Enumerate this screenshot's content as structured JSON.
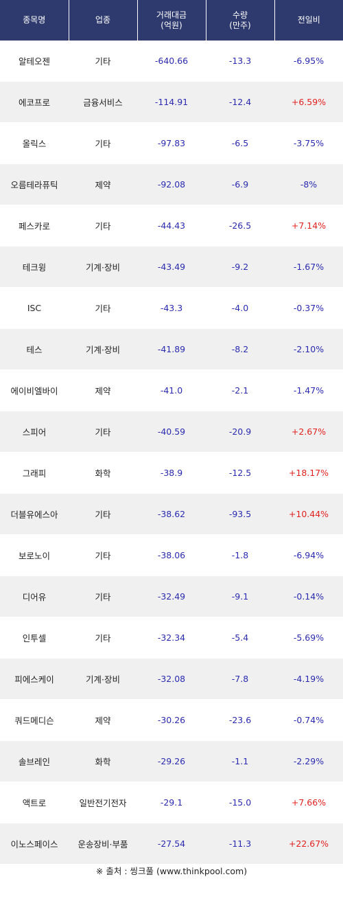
{
  "headers": [
    "종목명",
    "업종",
    "거래대금\n(억원)",
    "수량\n(만주)",
    "전일비"
  ],
  "rows": [
    {
      "name": "알테오젠",
      "sector": "기타",
      "amount": "-640.66",
      "qty": "-13.3",
      "change": "-6.95%",
      "dir": "down"
    },
    {
      "name": "에코프로",
      "sector": "금융서비스",
      "amount": "-114.91",
      "qty": "-12.4",
      "change": "+6.59%",
      "dir": "up"
    },
    {
      "name": "올릭스",
      "sector": "기타",
      "amount": "-97.83",
      "qty": "-6.5",
      "change": "-3.75%",
      "dir": "down"
    },
    {
      "name": "오름테라퓨틱",
      "sector": "제약",
      "amount": "-92.08",
      "qty": "-6.9",
      "change": "-8%",
      "dir": "down"
    },
    {
      "name": "페스카로",
      "sector": "기타",
      "amount": "-44.43",
      "qty": "-26.5",
      "change": "+7.14%",
      "dir": "up"
    },
    {
      "name": "테크윙",
      "sector": "기계·장비",
      "amount": "-43.49",
      "qty": "-9.2",
      "change": "-1.67%",
      "dir": "down"
    },
    {
      "name": "ISC",
      "sector": "기타",
      "amount": "-43.3",
      "qty": "-4.0",
      "change": "-0.37%",
      "dir": "down"
    },
    {
      "name": "테스",
      "sector": "기계·장비",
      "amount": "-41.89",
      "qty": "-8.2",
      "change": "-2.10%",
      "dir": "down"
    },
    {
      "name": "에이비엘바이",
      "sector": "제약",
      "amount": "-41.0",
      "qty": "-2.1",
      "change": "-1.47%",
      "dir": "down"
    },
    {
      "name": "스피어",
      "sector": "기타",
      "amount": "-40.59",
      "qty": "-20.9",
      "change": "+2.67%",
      "dir": "up"
    },
    {
      "name": "그래피",
      "sector": "화학",
      "amount": "-38.9",
      "qty": "-12.5",
      "change": "+18.17%",
      "dir": "up"
    },
    {
      "name": "더블유에스아",
      "sector": "기타",
      "amount": "-38.62",
      "qty": "-93.5",
      "change": "+10.44%",
      "dir": "up"
    },
    {
      "name": "보로노이",
      "sector": "기타",
      "amount": "-38.06",
      "qty": "-1.8",
      "change": "-6.94%",
      "dir": "down"
    },
    {
      "name": "디어유",
      "sector": "기타",
      "amount": "-32.49",
      "qty": "-9.1",
      "change": "-0.14%",
      "dir": "down"
    },
    {
      "name": "인투셀",
      "sector": "기타",
      "amount": "-32.34",
      "qty": "-5.4",
      "change": "-5.69%",
      "dir": "down"
    },
    {
      "name": "피에스케이",
      "sector": "기계·장비",
      "amount": "-32.08",
      "qty": "-7.8",
      "change": "-4.19%",
      "dir": "down"
    },
    {
      "name": "쿼드메디슨",
      "sector": "제약",
      "amount": "-30.26",
      "qty": "-23.6",
      "change": "-0.74%",
      "dir": "down"
    },
    {
      "name": "솔브레인",
      "sector": "화학",
      "amount": "-29.26",
      "qty": "-1.1",
      "change": "-2.29%",
      "dir": "down"
    },
    {
      "name": "액트로",
      "sector": "일반전기전자",
      "amount": "-29.1",
      "qty": "-15.0",
      "change": "+7.66%",
      "dir": "up"
    },
    {
      "name": "이노스페이스",
      "sector": "운송장비·부품",
      "amount": "-27.54",
      "qty": "-11.3",
      "change": "+22.67%",
      "dir": "up"
    }
  ],
  "source": "※ 출처 : 씽크풀 (www.thinkpool.com)",
  "colors": {
    "header_bg": "#2e3a6e",
    "up": "#e0211f",
    "down": "#2a2ab0",
    "stripe": "#f0f0f0"
  }
}
